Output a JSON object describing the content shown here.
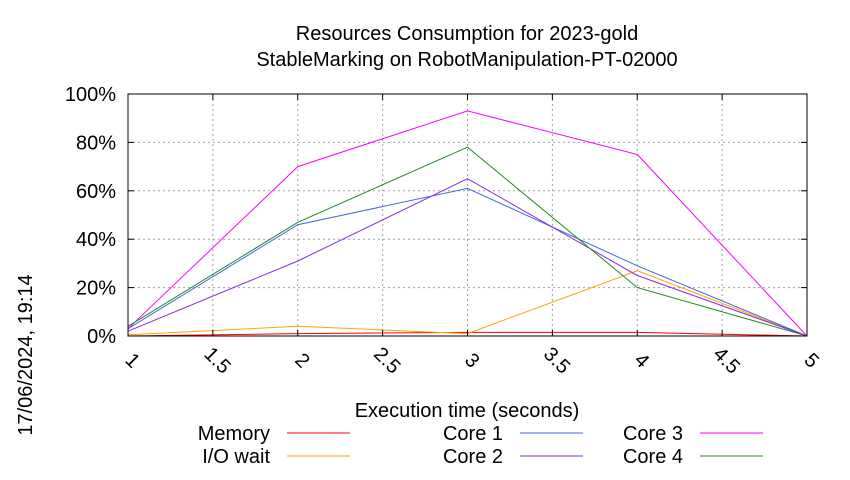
{
  "chart_data": {
    "type": "line",
    "title": "Resources Consumption for 2023-gold",
    "subtitle": "StableMarking on RobotManipulation-PT-02000",
    "xlabel": "Execution time (seconds)",
    "ylabel": "",
    "side_label": "17/06/2024, 19:14",
    "x_ticks": [
      "1",
      "1.5",
      "2",
      "2.5",
      "3",
      "3.5",
      "4",
      "4.5",
      "5"
    ],
    "y_ticks": [
      "0%",
      "20%",
      "40%",
      "60%",
      "80%",
      "100%"
    ],
    "xlim": [
      1,
      5
    ],
    "ylim": [
      0,
      100
    ],
    "grid": true,
    "legend_position": "bottom",
    "series": [
      {
        "name": "Memory",
        "color": "#ff0000",
        "x": [
          1,
          2,
          3,
          4,
          5
        ],
        "y": [
          0,
          1,
          1.5,
          1.5,
          0
        ]
      },
      {
        "name": "I/O wait",
        "color": "#ffa500",
        "x": [
          1,
          2,
          3,
          4,
          5
        ],
        "y": [
          0.5,
          4,
          1,
          27,
          0
        ]
      },
      {
        "name": "Core 1",
        "color": "#4169e1",
        "x": [
          1,
          2,
          3,
          4,
          5
        ],
        "y": [
          3,
          46,
          61,
          29,
          0
        ]
      },
      {
        "name": "Core 2",
        "color": "#8a2be2",
        "x": [
          1,
          2,
          3,
          4,
          5
        ],
        "y": [
          2,
          31,
          65,
          25,
          0
        ]
      },
      {
        "name": "Core 3",
        "color": "#ff00ff",
        "x": [
          1,
          2,
          3,
          4,
          5
        ],
        "y": [
          3,
          70,
          93,
          75,
          0
        ]
      },
      {
        "name": "Core 4",
        "color": "#228b22",
        "x": [
          1,
          2,
          3,
          4,
          5
        ],
        "y": [
          4,
          47,
          78,
          20,
          0
        ]
      }
    ]
  }
}
